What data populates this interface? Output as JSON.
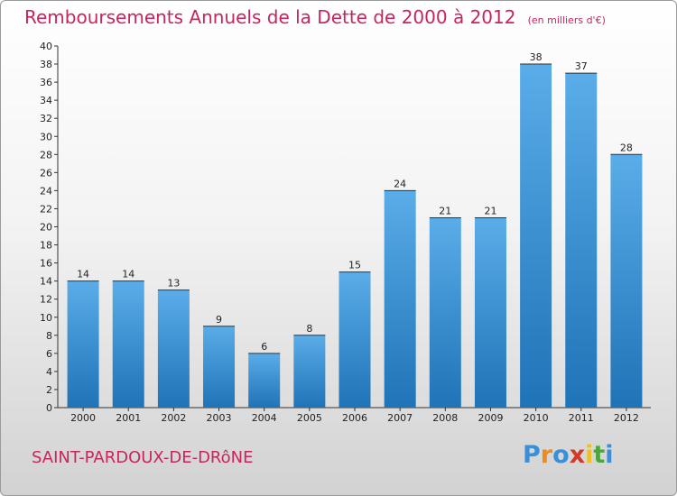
{
  "title": "Remboursements Annuels de la Dette de 2000 à 2012",
  "unit": "(en milliers d'€)",
  "location": "SAINT-PARDOUX-DE-DRôNE",
  "brand": {
    "letters": [
      "P",
      "r",
      "o",
      "x",
      "i",
      "t",
      "i"
    ],
    "colors": [
      "#3a8fd6",
      "#f08a1c",
      "#3a8fd6",
      "#d03a2a",
      "#f0c020",
      "#4aa83a",
      "#3a8fd6"
    ]
  },
  "colors": {
    "bar_top": "#5aade8",
    "bar_bottom": "#1f73b7",
    "title": "#c8265a"
  },
  "chart_data": {
    "type": "bar",
    "title": "Remboursements Annuels de la Dette de 2000 à 2012",
    "categories": [
      "2000",
      "2001",
      "2002",
      "2003",
      "2004",
      "2005",
      "2006",
      "2007",
      "2008",
      "2009",
      "2010",
      "2011",
      "2012"
    ],
    "values": [
      14,
      14,
      13,
      9,
      6,
      8,
      15,
      24,
      21,
      21,
      38,
      37,
      28
    ],
    "xlabel": "",
    "ylabel": "",
    "ylim": [
      0,
      40
    ],
    "yticks": [
      0,
      2,
      4,
      6,
      8,
      10,
      12,
      14,
      16,
      18,
      20,
      22,
      24,
      26,
      28,
      30,
      32,
      34,
      36,
      38,
      40
    ],
    "grid": false,
    "data_labels": true
  }
}
